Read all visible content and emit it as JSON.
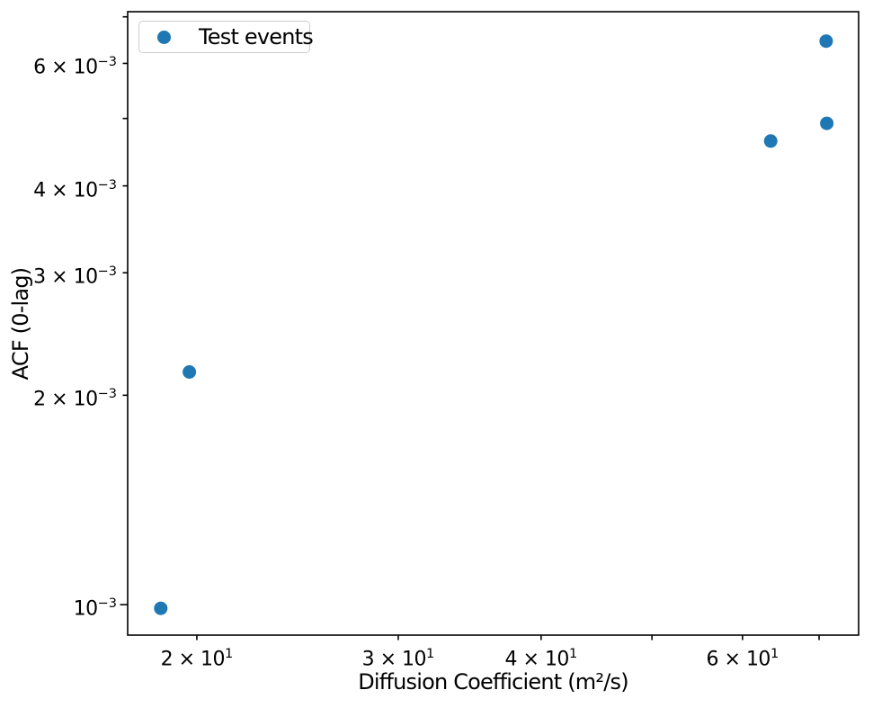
{
  "figure": {
    "background": "#ffffff",
    "text_color": "#000000",
    "spine_color": "#000000",
    "accent_color": "#1f77b4",
    "legend_border_color": "#cccccc",
    "legend_background": "rgba(255,255,255,0.8)"
  },
  "chart_data": {
    "type": "scatter",
    "x_scale": "log",
    "y_scale": "log",
    "xlabel": "Diffusion Coefficient (m²/s)",
    "ylabel": "ACF (0-lag)",
    "xlim": [
      17.4,
      75.8
    ],
    "ylim": [
      0.000904,
      0.00712
    ],
    "grid": false,
    "legend": {
      "label": "Test events",
      "position": "upper-left"
    },
    "series": [
      {
        "name": "Test events",
        "color": "#1f77b4",
        "marker": "circle",
        "marker_size_px": 15,
        "points": [
          {
            "x": 18.6,
            "y": 0.000988
          },
          {
            "x": 19.7,
            "y": 0.00216
          },
          {
            "x": 63.5,
            "y": 0.00464
          },
          {
            "x": 71.1,
            "y": 0.00492
          },
          {
            "x": 71.0,
            "y": 0.00646
          }
        ]
      }
    ],
    "x_ticks": [
      {
        "value": 20,
        "label": true,
        "major": false
      },
      {
        "value": 30,
        "label": true,
        "major": false
      },
      {
        "value": 40,
        "label": true,
        "major": false
      },
      {
        "value": 50,
        "label": false,
        "major": false
      },
      {
        "value": 60,
        "label": true,
        "major": false
      },
      {
        "value": 70,
        "label": false,
        "major": false
      }
    ],
    "y_ticks": [
      {
        "value": 0.001,
        "label": true,
        "major": true
      },
      {
        "value": 0.002,
        "label": true,
        "major": false
      },
      {
        "value": 0.003,
        "label": true,
        "major": false
      },
      {
        "value": 0.004,
        "label": true,
        "major": false
      },
      {
        "value": 0.005,
        "label": false,
        "major": false
      },
      {
        "value": 0.006,
        "label": true,
        "major": false
      },
      {
        "value": 0.007,
        "label": false,
        "major": false
      }
    ]
  }
}
